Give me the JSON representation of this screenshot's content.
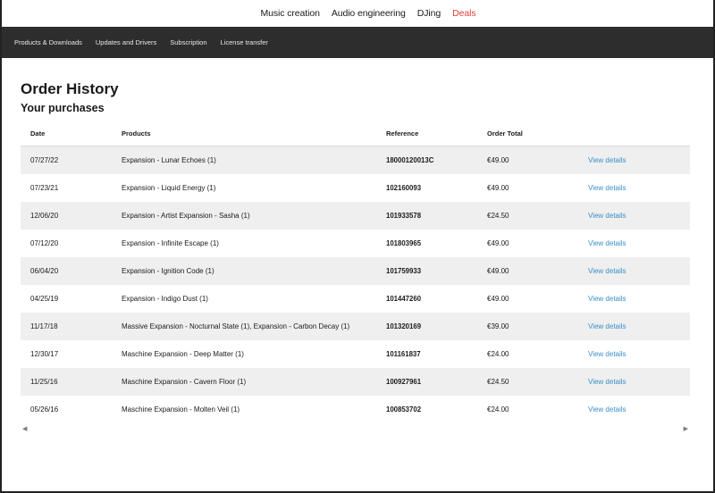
{
  "top_nav": [
    {
      "label": "Music creation",
      "highlight": false
    },
    {
      "label": "Audio engineering",
      "highlight": false
    },
    {
      "label": "DJing",
      "highlight": false
    },
    {
      "label": "Deals",
      "highlight": true
    }
  ],
  "sub_nav": [
    "Products & Downloads",
    "Updates and Drivers",
    "Subscription",
    "License transfer"
  ],
  "page": {
    "title": "Order History",
    "subtitle": "Your purchases"
  },
  "table": {
    "headers": {
      "date": "Date",
      "products": "Products",
      "reference": "Reference",
      "total": "Order Total"
    },
    "rows": [
      {
        "date": "07/27/22",
        "product": "Expansion - Lunar Echoes (1)",
        "reference": "18000120013C",
        "total": "€49.00",
        "link": "View details"
      },
      {
        "date": "07/23/21",
        "product": "Expansion - Liquid Energy (1)",
        "reference": "102160093",
        "total": "€49.00",
        "link": "View details"
      },
      {
        "date": "12/06/20",
        "product": "Expansion - Artist Expansion - Sasha (1)",
        "reference": "101933578",
        "total": "€24.50",
        "link": "View details"
      },
      {
        "date": "07/12/20",
        "product": "Expansion - Infinite Escape (1)",
        "reference": "101803965",
        "total": "€49.00",
        "link": "View details"
      },
      {
        "date": "06/04/20",
        "product": "Expansion - Ignition Code (1)",
        "reference": "101759933",
        "total": "€49.00",
        "link": "View details"
      },
      {
        "date": "04/25/19",
        "product": "Expansion - Indigo Dust (1)",
        "reference": "101447260",
        "total": "€49.00",
        "link": "View details"
      },
      {
        "date": "11/17/18",
        "product": "Massive Expansion - Nocturnal State (1), Expansion - Carbon Decay (1)",
        "reference": "101320169",
        "total": "€39.00",
        "link": "View details"
      },
      {
        "date": "12/30/17",
        "product": "Maschine Expansion - Deep Matter (1)",
        "reference": "101161837",
        "total": "€24.00",
        "link": "View details"
      },
      {
        "date": "11/25/16",
        "product": "Maschine Expansion - Cavern Floor (1)",
        "reference": "100927961",
        "total": "€24.50",
        "link": "View details"
      },
      {
        "date": "05/26/16",
        "product": "Maschine Expansion - Molten Veil (1)",
        "reference": "100853702",
        "total": "€24.00",
        "link": "View details"
      }
    ]
  },
  "icons": {
    "scroll_left": "triangle-left-icon",
    "scroll_right": "triangle-right-icon"
  },
  "colors": {
    "accent_link": "#3a8fc9",
    "deals": "#e0413a",
    "subnav_bg": "#2d2d2d",
    "row_alt": "#efefef"
  }
}
